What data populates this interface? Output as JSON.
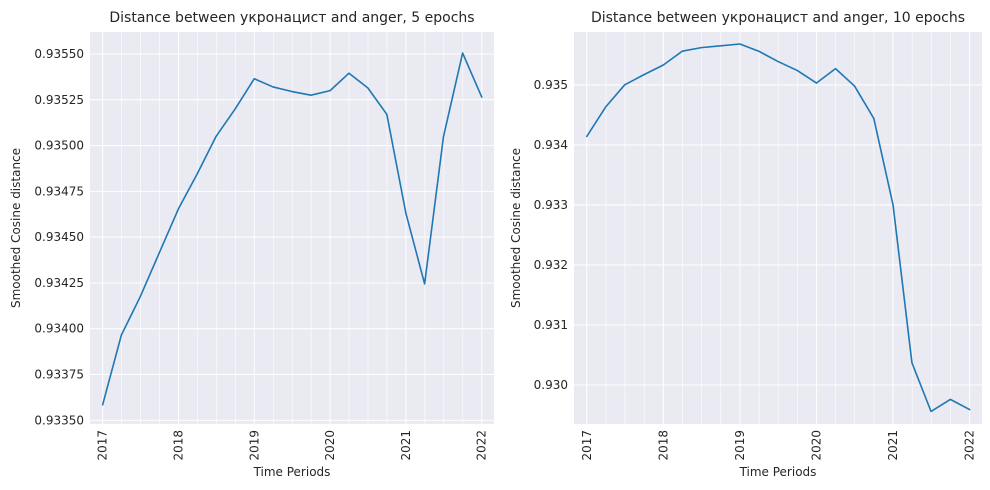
{
  "chart_data": [
    {
      "type": "line",
      "title": "Distance between укронацист and anger, 5 epochs",
      "xlabel": "Time Periods",
      "ylabel": "Smoothed Cosine distance",
      "xlim": [
        "2016-11-01",
        "2022-03-01"
      ],
      "ylim": [
        0.93348,
        0.93562
      ],
      "x_ticks": [
        2017,
        2018,
        2019,
        2020,
        2021,
        2022
      ],
      "y_ticks": [
        "0.93350",
        "0.93375",
        "0.93400",
        "0.93425",
        "0.93450",
        "0.93475",
        "0.93500",
        "0.93525",
        "0.93550"
      ],
      "grid": true,
      "color": "#1f77b4",
      "series": [
        {
          "x": [
            "2017-01-01",
            "2017-04-01",
            "2017-07-01",
            "2017-10-01",
            "2018-01-01",
            "2018-04-01",
            "2018-07-01",
            "2018-10-01",
            "2019-01-01",
            "2019-04-01",
            "2019-07-01",
            "2019-10-01",
            "2020-01-01",
            "2020-04-01",
            "2020-07-01",
            "2020-10-01",
            "2021-01-01",
            "2021-04-01",
            "2021-07-01",
            "2021-10-01",
            "2022-01-01"
          ],
          "y": [
            0.933585,
            0.933965,
            0.934175,
            0.934415,
            0.934655,
            0.934845,
            0.93505,
            0.9352,
            0.935365,
            0.93532,
            0.935295,
            0.935275,
            0.9353,
            0.935395,
            0.935315,
            0.93517,
            0.93463,
            0.934245,
            0.93505,
            0.935505,
            0.935265
          ]
        }
      ]
    },
    {
      "type": "line",
      "title": "Distance between укронацист and anger, 10 epochs",
      "xlabel": "Time Periods",
      "ylabel": "Smoothed Cosine distance",
      "xlim": [
        "2016-11-01",
        "2022-03-01"
      ],
      "ylim": [
        0.92935,
        0.93588
      ],
      "x_ticks": [
        2017,
        2018,
        2019,
        2020,
        2021,
        2022
      ],
      "y_ticks": [
        "0.930",
        "0.931",
        "0.932",
        "0.933",
        "0.934",
        "0.935"
      ],
      "grid": true,
      "color": "#1f77b4",
      "series": [
        {
          "x": [
            "2017-01-01",
            "2017-04-01",
            "2017-07-01",
            "2017-10-01",
            "2018-01-01",
            "2018-04-01",
            "2018-07-01",
            "2018-10-01",
            "2019-01-01",
            "2019-04-01",
            "2019-07-01",
            "2019-10-01",
            "2020-01-01",
            "2020-04-01",
            "2020-07-01",
            "2020-10-01",
            "2021-01-01",
            "2021-04-01",
            "2021-07-01",
            "2021-10-01",
            "2022-01-01"
          ],
          "y": [
            0.93414,
            0.93463,
            0.935,
            0.93517,
            0.93533,
            0.93556,
            0.93562,
            0.93565,
            0.93568,
            0.93556,
            0.93539,
            0.93524,
            0.93503,
            0.93527,
            0.93498,
            0.93444,
            0.933,
            0.93037,
            0.92956,
            0.92976,
            0.92959
          ]
        }
      ]
    }
  ]
}
